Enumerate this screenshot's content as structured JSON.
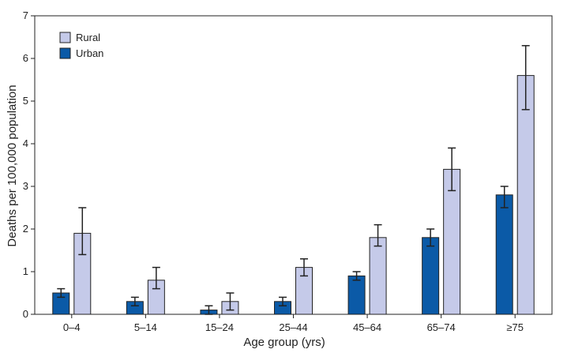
{
  "chart_data": {
    "type": "bar",
    "title": "",
    "xlabel": "Age group (yrs)",
    "ylabel": "Deaths per 100,000 population",
    "ylim": [
      0,
      7
    ],
    "yticks": [
      0,
      1,
      2,
      3,
      4,
      5,
      6,
      7
    ],
    "grid": false,
    "legend_position": "top-left",
    "categories": [
      "0–4",
      "5–14",
      "15–24",
      "25–44",
      "45–64",
      "65–74",
      "≥75"
    ],
    "series": [
      {
        "name": "Urban",
        "color": "#0b5aa7",
        "values": [
          0.5,
          0.3,
          0.1,
          0.3,
          0.9,
          1.8,
          2.8
        ],
        "ci_low": [
          0.4,
          0.2,
          0.0,
          0.2,
          0.8,
          1.6,
          2.5
        ],
        "ci_high": [
          0.6,
          0.4,
          0.2,
          0.4,
          1.0,
          2.0,
          3.0
        ]
      },
      {
        "name": "Rural",
        "color": "#c5cae9",
        "values": [
          1.9,
          0.8,
          0.3,
          1.1,
          1.8,
          3.4,
          5.6
        ],
        "ci_low": [
          1.4,
          0.6,
          0.1,
          0.9,
          1.6,
          2.9,
          4.8
        ],
        "ci_high": [
          2.5,
          1.1,
          0.5,
          1.3,
          2.1,
          3.9,
          6.3
        ]
      }
    ]
  }
}
